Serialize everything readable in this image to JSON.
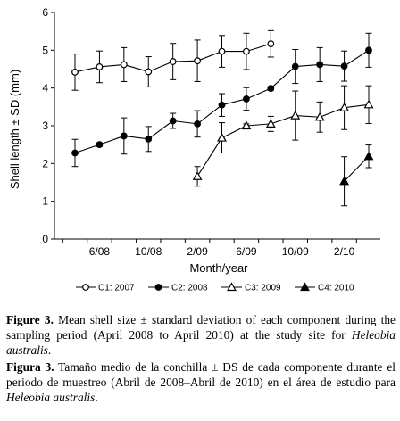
{
  "chart_data": {
    "type": "line",
    "x": [
      "4/08",
      "6/08",
      "8/08",
      "10/08",
      "12/08",
      "2/09",
      "4/09",
      "6/09",
      "8/09",
      "10/09",
      "12/09",
      "2/10",
      "4/10"
    ],
    "xtick_labels": [
      "6/08",
      "10/08",
      "2/09",
      "6/09",
      "10/09",
      "2/10"
    ],
    "xlabel": "Month/year",
    "ylabel": "Shell length ± SD (mm)",
    "ylim": [
      0,
      6
    ],
    "yticks": [
      "0",
      "1",
      "2",
      "3",
      "4",
      "5",
      "6"
    ],
    "grid": false,
    "legend_position": "bottom",
    "series": [
      {
        "name": "C1: 2007",
        "marker": "open-circle",
        "values": [
          4.42,
          4.56,
          4.62,
          4.43,
          4.7,
          4.72,
          4.97,
          4.97,
          5.17,
          null,
          null,
          null,
          null
        ],
        "sd": [
          0.48,
          0.42,
          0.45,
          0.4,
          0.48,
          0.55,
          0.42,
          0.48,
          0.35,
          null,
          null,
          null,
          null
        ]
      },
      {
        "name": "C2: 2008",
        "marker": "filled-circle",
        "values": [
          2.28,
          2.5,
          2.73,
          2.65,
          3.13,
          3.05,
          3.55,
          3.71,
          3.99,
          4.57,
          4.62,
          4.58,
          5.0
        ],
        "sd": [
          0.36,
          0.05,
          0.48,
          0.33,
          0.2,
          0.35,
          0.3,
          0.3,
          0.05,
          0.45,
          0.45,
          0.4,
          0.45
        ]
      },
      {
        "name": "C3: 2009",
        "marker": "open-triangle",
        "values": [
          null,
          null,
          null,
          null,
          null,
          1.66,
          2.68,
          3.0,
          3.05,
          3.27,
          3.23,
          3.48,
          3.56
        ],
        "sd": [
          null,
          null,
          null,
          null,
          null,
          0.26,
          0.4,
          0.05,
          0.2,
          0.65,
          0.4,
          0.58,
          0.5
        ]
      },
      {
        "name": "C4: 2010",
        "marker": "filled-triangle",
        "values": [
          null,
          null,
          null,
          null,
          null,
          null,
          null,
          null,
          null,
          null,
          null,
          1.53,
          2.19
        ],
        "sd": [
          null,
          null,
          null,
          null,
          null,
          null,
          null,
          null,
          null,
          null,
          null,
          0.65,
          0.3
        ]
      }
    ]
  },
  "caption": {
    "en_label": "Figure 3.",
    "en_text_1": " Mean shell size ± standard deviation of each component during the sampling period (April 2008 to April 2010) at the study site for ",
    "en_species": "Heleobia australis",
    "en_text_2": ".",
    "es_label": "Figura 3.",
    "es_text_1": " Tamaño medio de la conchilla ± DS de cada componente durante el periodo de muestreo (Abril de 2008–Abril de 2010) en el área de estudio para ",
    "es_species": "Heleobia australis",
    "es_text_2": "."
  }
}
